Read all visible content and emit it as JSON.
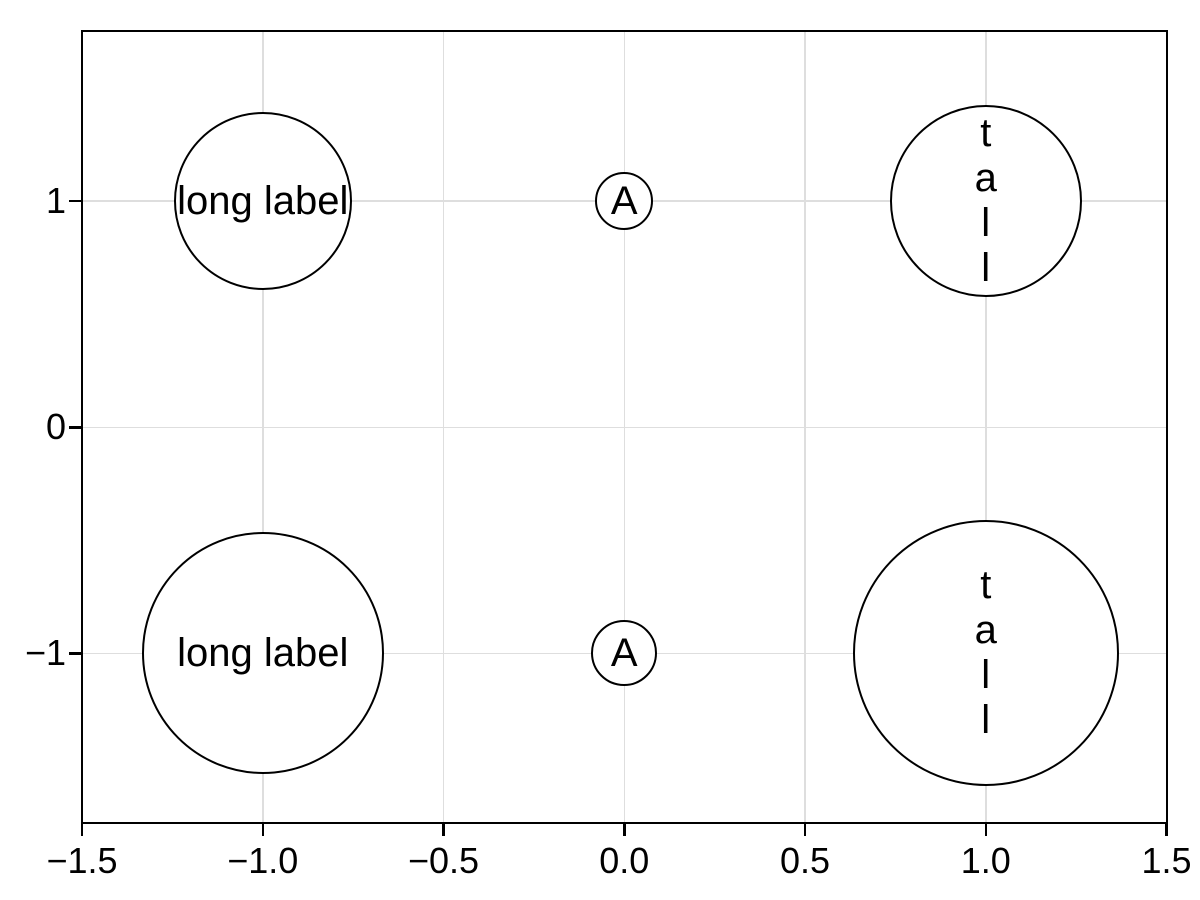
{
  "chart_data": {
    "type": "scatter",
    "title": "",
    "xlabel": "",
    "ylabel": "",
    "xlim": [
      -1.5,
      1.5
    ],
    "ylim": [
      -1.75,
      1.75
    ],
    "x_tick_values": [
      -1.5,
      -1.0,
      -0.5,
      0.0,
      0.5,
      1.0,
      1.5
    ],
    "x_tick_labels": [
      "−1.5",
      "−1.0",
      "−0.5",
      "0.0",
      "0.5",
      "1.0",
      "1.5"
    ],
    "y_tick_values": [
      -1,
      0,
      1
    ],
    "y_tick_labels": [
      "−1",
      "0",
      "1"
    ],
    "grid": {
      "on": true,
      "x_values": [
        -1.0,
        -0.5,
        0.0,
        0.5,
        1.0
      ],
      "y_values": [
        -1,
        0,
        1
      ],
      "color": "#dedede"
    },
    "axis_style": {
      "spine_color": "#000000",
      "tick_color": "#000000",
      "tick_label_color": "#000000"
    },
    "marker_style": {
      "fill": "#ffffff",
      "stroke": "#000000",
      "label_color": "#000000"
    },
    "points": [
      {
        "x": -1,
        "y": 1,
        "label": "long label",
        "stacked": false,
        "radius_px": 89
      },
      {
        "x": 0,
        "y": 1,
        "label": "A",
        "stacked": false,
        "radius_px": 29
      },
      {
        "x": 1,
        "y": 1,
        "label": "tall",
        "stacked": true,
        "radius_px": 96
      },
      {
        "x": -1,
        "y": -1,
        "label": "long label",
        "stacked": false,
        "radius_px": 121
      },
      {
        "x": 0,
        "y": -1,
        "label": "A",
        "stacked": false,
        "radius_px": 33
      },
      {
        "x": 1,
        "y": -1,
        "label": "tall",
        "stacked": true,
        "radius_px": 133
      }
    ]
  }
}
